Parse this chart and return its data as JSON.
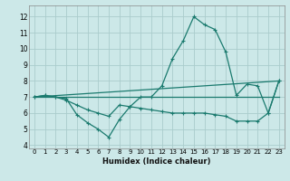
{
  "xlabel": "Humidex (Indice chaleur)",
  "bg_color": "#cce8e8",
  "grid_color": "#aacccc",
  "line_color": "#1a7a6e",
  "xlim": [
    -0.5,
    23.5
  ],
  "ylim": [
    3.8,
    12.7
  ],
  "xticks": [
    0,
    1,
    2,
    3,
    4,
    5,
    6,
    7,
    8,
    9,
    10,
    11,
    12,
    13,
    14,
    15,
    16,
    17,
    18,
    19,
    20,
    21,
    22,
    23
  ],
  "yticks": [
    4,
    5,
    6,
    7,
    8,
    9,
    10,
    11,
    12
  ],
  "line1_x": [
    0,
    1,
    2,
    3,
    4,
    5,
    6,
    7,
    8,
    9,
    10,
    11,
    12,
    13,
    14,
    15,
    16,
    17,
    18,
    19,
    20,
    21,
    22,
    23
  ],
  "line1_y": [
    7.0,
    7.1,
    7.0,
    6.9,
    5.9,
    5.4,
    5.0,
    4.5,
    5.6,
    6.4,
    7.0,
    7.0,
    7.7,
    9.4,
    10.5,
    12.0,
    11.5,
    11.2,
    9.8,
    7.1,
    7.8,
    7.7,
    6.0,
    8.0
  ],
  "line2_x": [
    0,
    1,
    2,
    3,
    4,
    5,
    6,
    7,
    8,
    9,
    10,
    11,
    12,
    13,
    14,
    15,
    16,
    17,
    18,
    19,
    20,
    21,
    22,
    23
  ],
  "line2_y": [
    7.0,
    7.1,
    7.0,
    6.8,
    6.5,
    6.2,
    6.0,
    5.8,
    6.5,
    6.4,
    6.3,
    6.2,
    6.1,
    6.0,
    6.0,
    6.0,
    6.0,
    5.9,
    5.8,
    5.5,
    5.5,
    5.5,
    6.0,
    8.0
  ],
  "line3_x": [
    0,
    23
  ],
  "line3_y": [
    7.0,
    8.0
  ],
  "line4_x": [
    0,
    23
  ],
  "line4_y": [
    7.0,
    7.0
  ],
  "xlabel_fontsize": 6.0,
  "tick_fontsize_x": 5.0,
  "tick_fontsize_y": 5.5
}
